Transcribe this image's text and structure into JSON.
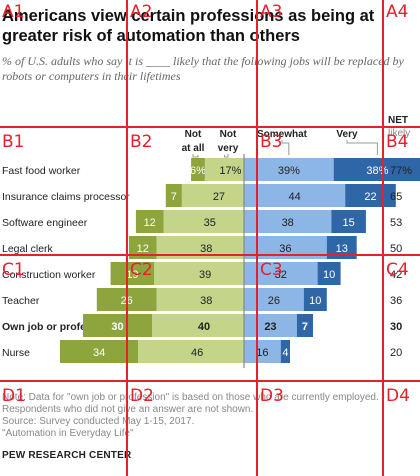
{
  "title": "Americans view certain professions as being at greater risk of automation than others",
  "subtitle": "% of U.S. adults who say it is ____ likely that the following jobs will be replaced by robots or computers in their lifetimes",
  "notes": [
    "Note: Data for \"own job or profession\" is based on those who are currently employed.",
    "Respondents who did not give an answer are not shown.",
    "Source: Survey conducted May 1-15, 2017.",
    "\"Automation in Everyday Life\""
  ],
  "brand": "PEW RESEARCH CENTER",
  "colors": {
    "not_at_all": "#8ea43c",
    "not_very": "#c4d58a",
    "somewhat": "#8cb6e5",
    "very": "#2e66a8",
    "grid_overlay": "#e8202a"
  },
  "grid_labels": [
    "A1",
    "A2",
    "A3",
    "A4",
    "B1",
    "B2",
    "B3",
    "B4",
    "C1",
    "C2",
    "C3",
    "C4",
    "D1",
    "D2",
    "D3",
    "D4"
  ],
  "chart_data": {
    "type": "bar",
    "orientation": "horizontal",
    "stacked": "diverging",
    "legend": {
      "not_at_all": "Not at all",
      "not_very": "Not very",
      "somewhat": "Somewhat",
      "very": "Very",
      "net": "NET likely"
    },
    "categories": [
      "Fast food worker",
      "Insurance claims processor",
      "Software engineer",
      "Legal clerk",
      "Construction worker",
      "Teacher",
      "Own job or profession",
      "Nurse"
    ],
    "bold_category": "Own job or profession",
    "series": [
      {
        "name": "Not at all",
        "values": [
          6,
          7,
          12,
          12,
          19,
          26,
          30,
          34
        ],
        "labels": [
          "6%",
          "7",
          "12",
          "12",
          "19",
          "26",
          "30",
          "34"
        ]
      },
      {
        "name": "Not very",
        "values": [
          17,
          27,
          35,
          38,
          39,
          38,
          40,
          46
        ],
        "labels": [
          "17%",
          "27",
          "35",
          "38",
          "39",
          "38",
          "40",
          "46"
        ]
      },
      {
        "name": "Somewhat",
        "values": [
          39,
          44,
          38,
          36,
          32,
          26,
          23,
          16
        ],
        "labels": [
          "39%",
          "44",
          "38",
          "36",
          "32",
          "26",
          "23",
          "16"
        ]
      },
      {
        "name": "Very",
        "values": [
          38,
          22,
          15,
          13,
          10,
          10,
          7,
          4
        ],
        "labels": [
          "38%",
          "22",
          "15",
          "13",
          "10",
          "10",
          "7",
          "4"
        ]
      }
    ],
    "net_likely": [
      "77%",
      "65",
      "53",
      "50",
      "42",
      "36",
      "30",
      "20"
    ]
  }
}
